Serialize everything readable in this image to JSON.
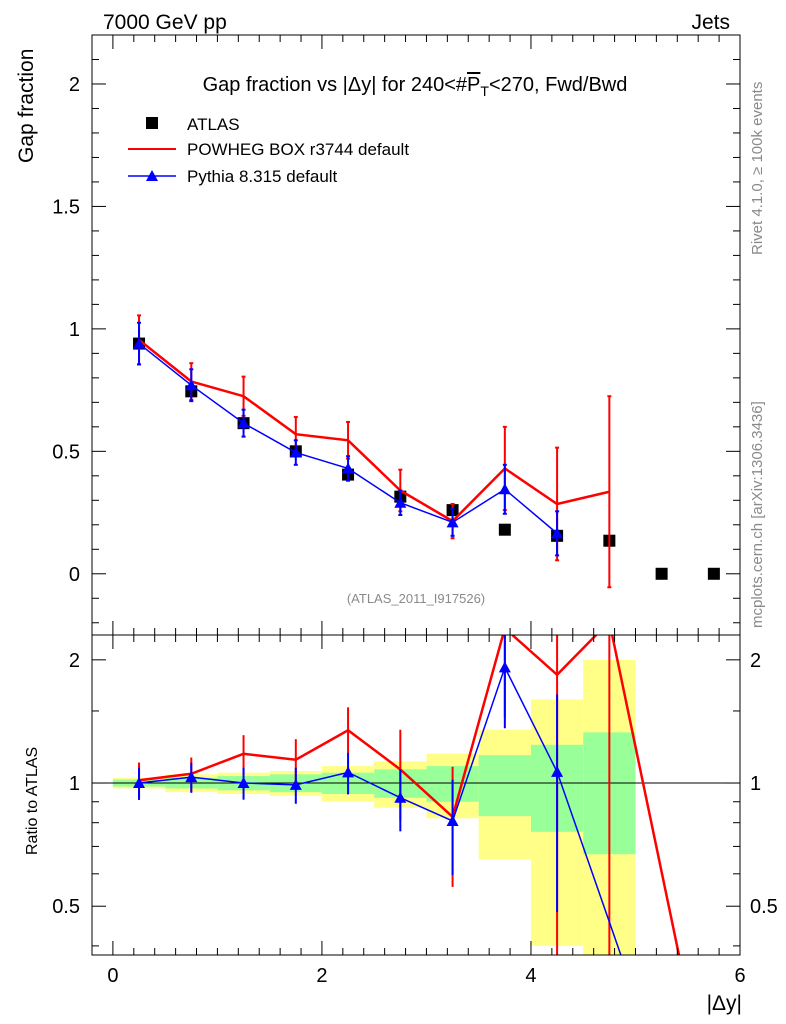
{
  "header": {
    "energy_label": "7000 GeV pp",
    "category_label": "Jets",
    "rivet_label": "Rivet 4.1.0, ≥ 100k events",
    "mcplots_label": "mcplots.cern.ch [arXiv:1306.3436]",
    "analysis_label": "(ATLAS_2011_I917526)"
  },
  "chart_data": {
    "type": "scatter",
    "title": "Gap fraction vs |Δy| for 240<#P̅T<270, Fwd/Bwd",
    "title_parts": {
      "prefix": "Gap fraction vs |Δy| for 240<#",
      "symbol": "P",
      "subscript": "T",
      "suffix": "<270, Fwd/Bwd"
    },
    "xlabel": "|Δy|",
    "ylabel_top": "Gap fraction",
    "ylabel_bottom": "Ratio to ATLAS",
    "xlim": [
      -0.2,
      6.0
    ],
    "ylim_top": [
      -0.25,
      2.2
    ],
    "ylim_bottom": [
      0.38,
      2.3
    ],
    "bottom_scale": "log",
    "x_ticks": [
      0,
      2,
      4,
      6
    ],
    "y_ticks_top": [
      0,
      0.5,
      1,
      1.5,
      2
    ],
    "y_tick_labels_top": [
      "0",
      "0.5",
      "1",
      "1.5",
      "2"
    ],
    "y_ticks_bottom": [
      0.5,
      1,
      2
    ],
    "y_tick_labels_bottom": [
      "0.5",
      "1",
      "2"
    ],
    "legend": {
      "position": "top-left",
      "entries": [
        "ATLAS",
        "POWHEG BOX r3744 default",
        "Pythia 8.315 default"
      ]
    },
    "colors": {
      "atlas": "#000000",
      "powheg": "#ff0000",
      "pythia": "#0000ff",
      "band_inner": "#99ff99",
      "band_outer": "#ffff88"
    },
    "x": [
      0.25,
      0.75,
      1.25,
      1.75,
      2.25,
      2.75,
      3.25,
      3.75,
      4.25,
      4.75,
      5.25,
      5.75
    ],
    "atlas": {
      "values": [
        0.94,
        0.745,
        0.615,
        0.5,
        0.405,
        0.315,
        0.26,
        0.18,
        0.155,
        0.135,
        0.0,
        0.0
      ],
      "band_inner": [
        0.02,
        0.03,
        0.04,
        0.05,
        0.06,
        0.08,
        0.1,
        0.17,
        0.24,
        0.33,
        null,
        null
      ],
      "band_outer": [
        0.03,
        0.05,
        0.06,
        0.07,
        0.1,
        0.13,
        0.18,
        0.35,
        0.6,
        1.0,
        null,
        null
      ]
    },
    "series": [
      {
        "name": "POWHEG BOX r3744 default",
        "values": [
          0.955,
          0.785,
          0.725,
          0.57,
          0.545,
          0.34,
          0.215,
          0.43,
          0.285,
          0.335
        ],
        "errors": [
          0.1,
          0.075,
          0.08,
          0.07,
          0.075,
          0.085,
          0.07,
          0.17,
          0.23,
          0.39
        ]
      },
      {
        "name": "Pythia 8.315 default",
        "values": [
          0.94,
          0.77,
          0.615,
          0.495,
          0.43,
          0.29,
          0.21,
          0.345,
          0.165
        ],
        "errors": [
          0.085,
          0.065,
          0.055,
          0.05,
          0.05,
          0.05,
          0.055,
          0.1,
          0.09
        ]
      }
    ]
  }
}
